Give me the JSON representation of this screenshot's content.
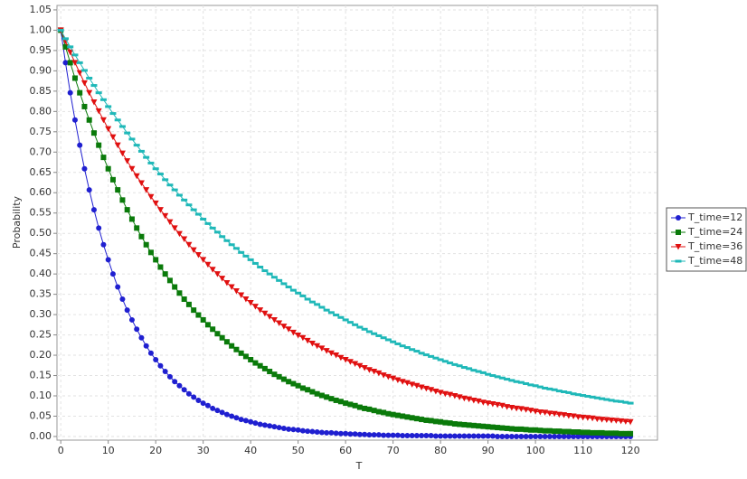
{
  "chart_data": {
    "type": "line",
    "x_label": "T",
    "y_label": "Probability",
    "x": [
      0,
      1,
      2,
      3,
      4,
      5,
      6,
      7,
      8,
      9,
      10,
      11,
      12,
      13,
      14,
      15,
      16,
      17,
      18,
      19,
      20,
      21,
      22,
      23,
      24,
      25,
      26,
      27,
      28,
      29,
      30,
      31,
      32,
      33,
      34,
      35,
      36,
      37,
      38,
      39,
      40,
      41,
      42,
      43,
      44,
      45,
      46,
      47,
      48,
      49,
      50,
      51,
      52,
      53,
      54,
      55,
      56,
      57,
      58,
      59,
      60,
      61,
      62,
      63,
      64,
      65,
      66,
      67,
      68,
      69,
      70,
      71,
      72,
      73,
      74,
      75,
      76,
      77,
      78,
      79,
      80,
      81,
      82,
      83,
      84,
      85,
      86,
      87,
      88,
      89,
      90,
      91,
      92,
      93,
      94,
      95,
      96,
      97,
      98,
      99,
      100,
      101,
      102,
      103,
      104,
      105,
      106,
      107,
      108,
      109,
      110,
      111,
      112,
      113,
      114,
      115,
      116,
      117,
      118,
      119,
      120
    ],
    "series": [
      {
        "name": "T_time=12",
        "color": "#1f1fd0",
        "values": [
          1,
          0.92,
          0.846,
          0.779,
          0.717,
          0.659,
          0.607,
          0.558,
          0.513,
          0.472,
          0.435,
          0.4,
          0.368,
          0.338,
          0.311,
          0.287,
          0.264,
          0.243,
          0.223,
          0.205,
          0.189,
          0.174,
          0.16,
          0.147,
          0.135,
          0.125,
          0.115,
          0.105,
          0.097,
          0.089,
          0.082,
          0.076,
          0.069,
          0.064,
          0.059,
          0.054,
          0.05,
          0.046,
          0.042,
          0.039,
          0.036,
          0.033,
          0.03,
          0.028,
          0.026,
          0.024,
          0.022,
          0.02,
          0.018,
          0.017,
          0.016,
          0.014,
          0.013,
          0.012,
          0.011,
          0.01,
          0.009,
          0.009,
          0.008,
          0.007,
          0.007,
          0.006,
          0.006,
          0.005,
          0.005,
          0.004,
          0.004,
          0.004,
          0.003,
          0.003,
          0.003,
          0.003,
          0.002,
          0.002,
          0.002,
          0.002,
          0.002,
          0.002,
          0.002,
          0.001,
          0.001,
          0.001,
          0.001,
          0.001,
          0.001,
          0.001,
          0.001,
          0.001,
          0.001,
          0.001,
          0.001,
          0.001,
          0,
          0,
          0,
          0,
          0,
          0,
          0,
          0,
          0,
          0,
          0,
          0,
          0,
          0,
          0,
          0,
          0,
          0,
          0,
          0,
          0,
          0,
          0,
          0,
          0,
          0,
          0,
          0,
          0
        ]
      },
      {
        "name": "T_time=24",
        "color": "#0a7a0a",
        "values": [
          1,
          0.959,
          0.92,
          0.882,
          0.846,
          0.812,
          0.779,
          0.747,
          0.717,
          0.687,
          0.659,
          0.632,
          0.607,
          0.582,
          0.558,
          0.535,
          0.513,
          0.492,
          0.472,
          0.453,
          0.435,
          0.417,
          0.4,
          0.384,
          0.368,
          0.353,
          0.338,
          0.325,
          0.311,
          0.299,
          0.287,
          0.275,
          0.264,
          0.253,
          0.243,
          0.233,
          0.223,
          0.214,
          0.205,
          0.197,
          0.189,
          0.181,
          0.174,
          0.167,
          0.16,
          0.153,
          0.147,
          0.141,
          0.135,
          0.13,
          0.125,
          0.119,
          0.115,
          0.11,
          0.105,
          0.101,
          0.097,
          0.093,
          0.089,
          0.086,
          0.082,
          0.079,
          0.076,
          0.072,
          0.069,
          0.067,
          0.064,
          0.061,
          0.059,
          0.056,
          0.054,
          0.052,
          0.05,
          0.048,
          0.046,
          0.044,
          0.042,
          0.04,
          0.039,
          0.037,
          0.036,
          0.034,
          0.033,
          0.031,
          0.03,
          0.029,
          0.028,
          0.027,
          0.026,
          0.025,
          0.024,
          0.023,
          0.022,
          0.021,
          0.02,
          0.019,
          0.018,
          0.018,
          0.017,
          0.016,
          0.016,
          0.015,
          0.014,
          0.014,
          0.013,
          0.013,
          0.012,
          0.012,
          0.011,
          0.011,
          0.01,
          0.01,
          0.009,
          0.009,
          0.009,
          0.008,
          0.008,
          0.008,
          0.007,
          0.007,
          0.007
        ]
      },
      {
        "name": "T_time=36",
        "color": "#e01010",
        "values": [
          1,
          0.973,
          0.946,
          0.92,
          0.895,
          0.87,
          0.846,
          0.823,
          0.801,
          0.779,
          0.757,
          0.737,
          0.717,
          0.697,
          0.678,
          0.659,
          0.641,
          0.624,
          0.607,
          0.59,
          0.574,
          0.558,
          0.543,
          0.528,
          0.513,
          0.499,
          0.486,
          0.472,
          0.459,
          0.447,
          0.435,
          0.423,
          0.411,
          0.4,
          0.389,
          0.378,
          0.368,
          0.358,
          0.348,
          0.338,
          0.329,
          0.32,
          0.311,
          0.303,
          0.295,
          0.287,
          0.279,
          0.271,
          0.264,
          0.256,
          0.249,
          0.243,
          0.236,
          0.229,
          0.223,
          0.217,
          0.211,
          0.205,
          0.2,
          0.194,
          0.189,
          0.184,
          0.179,
          0.174,
          0.169,
          0.164,
          0.16,
          0.156,
          0.151,
          0.147,
          0.143,
          0.139,
          0.135,
          0.132,
          0.128,
          0.125,
          0.121,
          0.118,
          0.115,
          0.111,
          0.108,
          0.105,
          0.103,
          0.1,
          0.097,
          0.094,
          0.092,
          0.089,
          0.087,
          0.084,
          0.082,
          0.08,
          0.078,
          0.076,
          0.073,
          0.071,
          0.069,
          0.068,
          0.066,
          0.064,
          0.062,
          0.06,
          0.059,
          0.057,
          0.056,
          0.054,
          0.053,
          0.051,
          0.05,
          0.048,
          0.047,
          0.046,
          0.045,
          0.043,
          0.042,
          0.041,
          0.04,
          0.039,
          0.038,
          0.037,
          0.036
        ]
      },
      {
        "name": "T_time=48",
        "color": "#1fb8b8",
        "values": [
          1,
          0.979,
          0.959,
          0.939,
          0.92,
          0.901,
          0.882,
          0.864,
          0.846,
          0.829,
          0.812,
          0.795,
          0.779,
          0.763,
          0.747,
          0.732,
          0.717,
          0.702,
          0.687,
          0.673,
          0.659,
          0.646,
          0.632,
          0.619,
          0.607,
          0.594,
          0.582,
          0.57,
          0.558,
          0.547,
          0.535,
          0.524,
          0.513,
          0.503,
          0.492,
          0.482,
          0.472,
          0.463,
          0.453,
          0.444,
          0.435,
          0.426,
          0.417,
          0.408,
          0.4,
          0.392,
          0.384,
          0.376,
          0.368,
          0.36,
          0.353,
          0.346,
          0.338,
          0.331,
          0.325,
          0.318,
          0.311,
          0.305,
          0.299,
          0.293,
          0.287,
          0.281,
          0.275,
          0.269,
          0.264,
          0.258,
          0.253,
          0.248,
          0.243,
          0.238,
          0.233,
          0.228,
          0.223,
          0.219,
          0.214,
          0.21,
          0.205,
          0.201,
          0.197,
          0.193,
          0.189,
          0.185,
          0.181,
          0.177,
          0.174,
          0.17,
          0.167,
          0.163,
          0.16,
          0.157,
          0.153,
          0.15,
          0.147,
          0.144,
          0.141,
          0.138,
          0.135,
          0.133,
          0.13,
          0.127,
          0.125,
          0.122,
          0.119,
          0.117,
          0.115,
          0.112,
          0.11,
          0.108,
          0.105,
          0.103,
          0.101,
          0.099,
          0.097,
          0.095,
          0.093,
          0.091,
          0.089,
          0.087,
          0.086,
          0.084,
          0.082
        ]
      }
    ],
    "xlim": [
      -0.8,
      125.7
    ],
    "ylim": [
      -0.009,
      1.061
    ],
    "xticks": [
      0,
      10,
      20,
      30,
      40,
      50,
      60,
      70,
      80,
      90,
      100,
      110,
      120
    ],
    "yticks": [
      {
        "value": 0,
        "label": "0.00"
      },
      {
        "value": 0.05,
        "label": "0.05"
      },
      {
        "value": 0.1,
        "label": "0.10"
      },
      {
        "value": 0.15,
        "label": "0.15"
      },
      {
        "value": 0.2,
        "label": "0.20"
      },
      {
        "value": 0.25,
        "label": "0.25"
      },
      {
        "value": 0.3,
        "label": "0.30"
      },
      {
        "value": 0.35,
        "label": "0.35"
      },
      {
        "value": 0.4,
        "label": "0.40"
      },
      {
        "value": 0.45,
        "label": "0.45"
      },
      {
        "value": 0.5,
        "label": "0.50"
      },
      {
        "value": 0.55,
        "label": "0.55"
      },
      {
        "value": 0.6,
        "label": "0.60"
      },
      {
        "value": 0.65,
        "label": "0.65"
      },
      {
        "value": 0.7,
        "label": "0.70"
      },
      {
        "value": 0.75,
        "label": "0.75"
      },
      {
        "value": 0.8,
        "label": "0.80"
      },
      {
        "value": 0.85,
        "label": "0.85"
      },
      {
        "value": 0.9,
        "label": "0.90"
      },
      {
        "value": 0.95,
        "label": "0.95"
      },
      {
        "value": 1,
        "label": "1.00"
      },
      {
        "value": 1.05,
        "label": "1.05"
      }
    ],
    "grid": true,
    "legend": "right"
  }
}
